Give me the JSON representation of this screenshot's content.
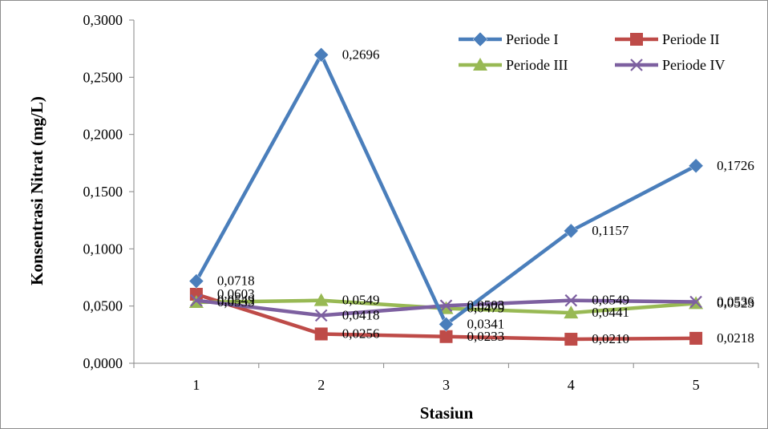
{
  "chart_data": {
    "type": "line",
    "xlabel": "Stasiun",
    "ylabel": "Konsentrasi Nitrat (mg/L)",
    "x": [
      "1",
      "2",
      "3",
      "4",
      "5"
    ],
    "ylim": [
      0,
      0.3
    ],
    "yticks": [
      "0,0000",
      "0,0500",
      "0,1000",
      "0,1500",
      "0,2000",
      "0,2500",
      "0,3000"
    ],
    "grid": false,
    "legend_position": "top-right",
    "series": [
      {
        "name": "Periode I",
        "color": "#4a7ebb",
        "marker": "diamond",
        "values": [
          0.0718,
          0.2696,
          0.0341,
          0.1157,
          0.1726
        ],
        "labels": [
          "0,0718",
          "0,2696",
          "0,0341",
          "0,1157",
          "0,1726"
        ]
      },
      {
        "name": "Periode II",
        "color": "#be4b48",
        "marker": "square",
        "values": [
          0.0603,
          0.0256,
          0.0233,
          0.021,
          0.0218
        ],
        "labels": [
          "0,0603",
          "0,0256",
          "0,0233",
          "0,0210",
          "0,0218"
        ]
      },
      {
        "name": "Periode III",
        "color": "#98b954",
        "marker": "triangle",
        "values": [
          0.0533,
          0.0549,
          0.0479,
          0.0441,
          0.0523
        ],
        "labels": [
          "0,0533",
          "0,0549",
          "0,0479",
          "0,0441",
          "0,0523"
        ]
      },
      {
        "name": "Periode IV",
        "color": "#7d60a0",
        "marker": "x",
        "values": [
          0.0549,
          0.0418,
          0.0503,
          0.0549,
          0.0536
        ],
        "labels": [
          "0,0549",
          "0,0418",
          "0,0503",
          "0,0549",
          "0,0536"
        ]
      }
    ]
  }
}
